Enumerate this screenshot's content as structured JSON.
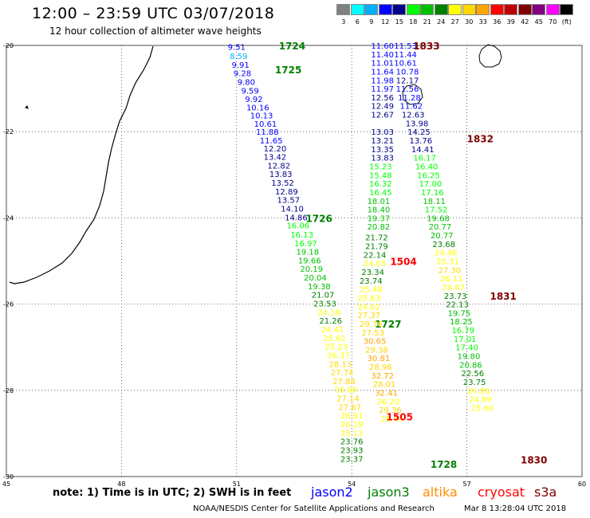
{
  "header": {
    "title": "12:00 – 23:59 UTC 03/07/2018",
    "subtitle": "12 hour collection of altimeter wave heights"
  },
  "color_scale": {
    "colors": [
      "#808080",
      "#00ffff",
      "#00b0ff",
      "#0000ff",
      "#00008b",
      "#00ff00",
      "#00c000",
      "#008000",
      "#ffff00",
      "#ffd700",
      "#ffa500",
      "#ff0000",
      "#c00000",
      "#800000",
      "#800080",
      "#ff00ff",
      "#000000"
    ],
    "labels": [
      "3",
      "6",
      "9",
      "12",
      "15",
      "18",
      "21",
      "24",
      "27",
      "30",
      "33",
      "36",
      "39",
      "42",
      "45",
      "70",
      "(ft)"
    ]
  },
  "map": {
    "lat_labels": [
      "-20",
      "-22",
      "-24",
      "-26",
      "-28",
      "-30"
    ],
    "lon_labels": [
      "45",
      "48",
      "51",
      "54",
      "57",
      "60"
    ],
    "lon_range": [
      45,
      60
    ],
    "lat_range": [
      -20,
      -30
    ]
  },
  "chart_data": {
    "type": "scatter",
    "xlabel": "",
    "ylabel": "",
    "grid": true,
    "tracks": [
      {
        "name": "jason2",
        "color": "#0000ff",
        "time_labels": [],
        "points": []
      },
      {
        "name": "jason3",
        "color": "#008000",
        "time_labels": [
          {
            "label": "1724",
            "lon": 52.1,
            "lat": -20.0
          },
          {
            "label": "1725",
            "lon": 52.0,
            "lat": -20.55
          },
          {
            "label": "1726",
            "lon": 52.8,
            "lat": -24.0
          },
          {
            "label": "1727",
            "lon": 54.6,
            "lat": -26.45
          },
          {
            "label": "1728",
            "lon": 56.05,
            "lat": -29.7
          }
        ],
        "points": [
          {
            "lon": 51.0,
            "lat": -20.03,
            "v": "9.51"
          },
          {
            "lon": 51.05,
            "lat": -20.24,
            "v": "8.59"
          },
          {
            "lon": 51.1,
            "lat": -20.44,
            "v": "9.91"
          },
          {
            "lon": 51.15,
            "lat": -20.64,
            "v": "9.28"
          },
          {
            "lon": 51.25,
            "lat": -20.84,
            "v": "9.80"
          },
          {
            "lon": 51.35,
            "lat": -21.04,
            "v": "9.59"
          },
          {
            "lon": 51.45,
            "lat": -21.24,
            "v": "9.92"
          },
          {
            "lon": 51.55,
            "lat": -21.43,
            "v": "10.16"
          },
          {
            "lon": 51.65,
            "lat": -21.62,
            "v": "10.13"
          },
          {
            "lon": 51.75,
            "lat": -21.81,
            "v": "10.61"
          },
          {
            "lon": 51.8,
            "lat": -22.0,
            "v": "11.88"
          },
          {
            "lon": 51.9,
            "lat": -22.2,
            "v": "11.65"
          },
          {
            "lon": 52.0,
            "lat": -22.38,
            "v": "12.20"
          },
          {
            "lon": 52.0,
            "lat": -22.58,
            "v": "13.42"
          },
          {
            "lon": 52.1,
            "lat": -22.78,
            "v": "12.82"
          },
          {
            "lon": 52.15,
            "lat": -22.98,
            "v": "13.83"
          },
          {
            "lon": 52.2,
            "lat": -23.18,
            "v": "13.52"
          },
          {
            "lon": 52.3,
            "lat": -23.38,
            "v": "12.89"
          },
          {
            "lon": 52.35,
            "lat": -23.58,
            "v": "13.57"
          },
          {
            "lon": 52.45,
            "lat": -23.78,
            "v": "14.10"
          },
          {
            "lon": 52.55,
            "lat": -23.98,
            "v": "14.86"
          },
          {
            "lon": 52.6,
            "lat": -24.17,
            "v": "16.06"
          },
          {
            "lon": 52.7,
            "lat": -24.38,
            "v": "16.13"
          },
          {
            "lon": 52.8,
            "lat": -24.58,
            "v": "16.97"
          },
          {
            "lon": 52.85,
            "lat": -24.78,
            "v": "19.18"
          },
          {
            "lon": 52.9,
            "lat": -24.98,
            "v": "19.66"
          },
          {
            "lon": 52.95,
            "lat": -25.18,
            "v": "20.19"
          },
          {
            "lon": 53.05,
            "lat": -25.38,
            "v": "20.04"
          },
          {
            "lon": 53.15,
            "lat": -25.58,
            "v": "19.38"
          },
          {
            "lon": 53.25,
            "lat": -25.78,
            "v": "21.07"
          },
          {
            "lon": 53.3,
            "lat": -25.98,
            "v": "23.53"
          },
          {
            "lon": 53.4,
            "lat": -26.18,
            "v": "24.18"
          },
          {
            "lon": 53.45,
            "lat": -26.38,
            "v": "21.26"
          },
          {
            "lon": 53.5,
            "lat": -26.58,
            "v": "24.41"
          },
          {
            "lon": 53.55,
            "lat": -26.78,
            "v": "25.62"
          },
          {
            "lon": 53.6,
            "lat": -26.98,
            "v": "25.23"
          },
          {
            "lon": 53.65,
            "lat": -27.18,
            "v": "26.37"
          },
          {
            "lon": 53.7,
            "lat": -27.38,
            "v": "28.13"
          },
          {
            "lon": 53.75,
            "lat": -27.58,
            "v": "27.74"
          },
          {
            "lon": 53.8,
            "lat": -27.78,
            "v": "27.88"
          },
          {
            "lon": 53.85,
            "lat": -27.98,
            "v": "26.68"
          },
          {
            "lon": 53.9,
            "lat": -28.18,
            "v": "27.14"
          },
          {
            "lon": 53.95,
            "lat": -28.38,
            "v": "27.67"
          },
          {
            "lon": 54.0,
            "lat": -28.58,
            "v": "26.81"
          },
          {
            "lon": 54.0,
            "lat": -28.78,
            "v": "26.19"
          },
          {
            "lon": 54.0,
            "lat": -28.98,
            "v": "25.13"
          },
          {
            "lon": 54.0,
            "lat": -29.18,
            "v": "23.76"
          },
          {
            "lon": 54.0,
            "lat": -29.38,
            "v": "23.93"
          },
          {
            "lon": 54.0,
            "lat": -29.58,
            "v": "23.37"
          }
        ]
      },
      {
        "name": "altika",
        "color": "#ff8c00",
        "time_labels": [],
        "points": []
      },
      {
        "name": "cryosat",
        "color": "#ff0000",
        "time_labels": [
          {
            "label": "1504",
            "lon": 55.0,
            "lat": -25.0
          },
          {
            "label": "1505",
            "lon": 54.9,
            "lat": -28.6
          }
        ],
        "points": [
          {
            "lon": 54.8,
            "lat": -22.0,
            "v": "13.03"
          },
          {
            "lon": 54.8,
            "lat": -22.2,
            "v": "13.21"
          },
          {
            "lon": 54.8,
            "lat": -22.4,
            "v": "13.35"
          },
          {
            "lon": 54.8,
            "lat": -22.6,
            "v": "13.83"
          },
          {
            "lon": 54.75,
            "lat": -22.8,
            "v": "15.23"
          },
          {
            "lon": 54.75,
            "lat": -23.0,
            "v": "15.48"
          },
          {
            "lon": 54.75,
            "lat": -23.2,
            "v": "16.32"
          },
          {
            "lon": 54.75,
            "lat": -23.4,
            "v": "16.45"
          },
          {
            "lon": 54.7,
            "lat": -23.6,
            "v": "18.01"
          },
          {
            "lon": 54.7,
            "lat": -23.8,
            "v": "18.40"
          },
          {
            "lon": 54.7,
            "lat": -24.0,
            "v": "19.37"
          },
          {
            "lon": 54.7,
            "lat": -24.2,
            "v": "20.82"
          },
          {
            "lon": 54.65,
            "lat": -24.45,
            "v": "21.72"
          },
          {
            "lon": 54.65,
            "lat": -24.65,
            "v": "21.79"
          },
          {
            "lon": 54.6,
            "lat": -24.85,
            "v": "22.14"
          },
          {
            "lon": 54.6,
            "lat": -25.05,
            "v": "24.05"
          },
          {
            "lon": 54.55,
            "lat": -25.25,
            "v": "23.34"
          },
          {
            "lon": 54.5,
            "lat": -25.45,
            "v": "23.74"
          },
          {
            "lon": 54.5,
            "lat": -25.65,
            "v": "25.48"
          },
          {
            "lon": 54.45,
            "lat": -25.85,
            "v": "25.63"
          },
          {
            "lon": 54.45,
            "lat": -26.05,
            "v": "24.62"
          },
          {
            "lon": 54.45,
            "lat": -26.25,
            "v": "27.37"
          },
          {
            "lon": 54.5,
            "lat": -26.45,
            "v": "29.76"
          },
          {
            "lon": 54.55,
            "lat": -26.65,
            "v": "27.53"
          },
          {
            "lon": 54.6,
            "lat": -26.85,
            "v": "30.65"
          },
          {
            "lon": 54.65,
            "lat": -27.05,
            "v": "29.38"
          },
          {
            "lon": 54.7,
            "lat": -27.25,
            "v": "30.81"
          },
          {
            "lon": 54.75,
            "lat": -27.45,
            "v": "28.96"
          },
          {
            "lon": 54.8,
            "lat": -27.65,
            "v": "32.72"
          },
          {
            "lon": 54.85,
            "lat": -27.85,
            "v": "28.01"
          },
          {
            "lon": 54.9,
            "lat": -28.05,
            "v": "32.41"
          },
          {
            "lon": 54.95,
            "lat": -28.25,
            "v": "26.20"
          },
          {
            "lon": 55.0,
            "lat": -28.45,
            "v": "29.36"
          },
          {
            "lon": 55.05,
            "lat": -28.65,
            "v": "26.44"
          }
        ]
      },
      {
        "name": "s3a",
        "color": "#800000",
        "time_labels": [
          {
            "label": "1833",
            "lon": 55.6,
            "lat": -20.0
          },
          {
            "label": "1832",
            "lon": 57.0,
            "lat": -22.15
          },
          {
            "label": "1831",
            "lon": 57.6,
            "lat": -25.8
          },
          {
            "label": "1830",
            "lon": 58.4,
            "lat": -29.6
          }
        ],
        "points": [
          {
            "lon": 54.8,
            "lat": -20.0,
            "v": "11.60"
          },
          {
            "lon": 54.8,
            "lat": -20.2,
            "v": "11.40"
          },
          {
            "lon": 54.8,
            "lat": -20.4,
            "v": "11.01"
          },
          {
            "lon": 54.8,
            "lat": -20.6,
            "v": "11.64"
          },
          {
            "lon": 54.8,
            "lat": -20.8,
            "v": "11.98"
          },
          {
            "lon": 54.8,
            "lat": -21.0,
            "v": "11.97"
          },
          {
            "lon": 54.8,
            "lat": -21.2,
            "v": "12.56"
          },
          {
            "lon": 54.8,
            "lat": -21.4,
            "v": "12.49"
          },
          {
            "lon": 54.8,
            "lat": -21.6,
            "v": "12.67"
          },
          {
            "lon": 55.4,
            "lat": -20.0,
            "v": "11.53"
          },
          {
            "lon": 55.4,
            "lat": -20.2,
            "v": "11.44"
          },
          {
            "lon": 55.4,
            "lat": -20.4,
            "v": "10.61"
          },
          {
            "lon": 55.45,
            "lat": -20.6,
            "v": "10.78"
          },
          {
            "lon": 55.45,
            "lat": -20.8,
            "v": "12.17"
          },
          {
            "lon": 55.45,
            "lat": -21.0,
            "v": "11.56"
          },
          {
            "lon": 55.5,
            "lat": -21.2,
            "v": "11.28"
          },
          {
            "lon": 55.55,
            "lat": -21.4,
            "v": "11.62"
          },
          {
            "lon": 55.6,
            "lat": -21.6,
            "v": "12.63"
          },
          {
            "lon": 55.7,
            "lat": -21.8,
            "v": "13.98"
          },
          {
            "lon": 55.75,
            "lat": -22.0,
            "v": "14.25"
          },
          {
            "lon": 55.8,
            "lat": -22.2,
            "v": "13.76"
          },
          {
            "lon": 55.85,
            "lat": -22.4,
            "v": "14.41"
          },
          {
            "lon": 55.9,
            "lat": -22.6,
            "v": "16.17"
          },
          {
            "lon": 55.95,
            "lat": -22.8,
            "v": "16.40"
          },
          {
            "lon": 56.0,
            "lat": -23.0,
            "v": "16.25"
          },
          {
            "lon": 56.05,
            "lat": -23.2,
            "v": "17.00"
          },
          {
            "lon": 56.1,
            "lat": -23.4,
            "v": "17.16"
          },
          {
            "lon": 56.15,
            "lat": -23.6,
            "v": "18.11"
          },
          {
            "lon": 56.2,
            "lat": -23.8,
            "v": "17.52"
          },
          {
            "lon": 56.25,
            "lat": -24.0,
            "v": "19.68"
          },
          {
            "lon": 56.3,
            "lat": -24.2,
            "v": "20.77"
          },
          {
            "lon": 56.35,
            "lat": -24.4,
            "v": "20.77"
          },
          {
            "lon": 56.4,
            "lat": -24.6,
            "v": "23.68"
          },
          {
            "lon": 56.45,
            "lat": -24.8,
            "v": "24.46"
          },
          {
            "lon": 56.5,
            "lat": -25.0,
            "v": "25.31"
          },
          {
            "lon": 56.55,
            "lat": -25.2,
            "v": "27.30"
          },
          {
            "lon": 56.6,
            "lat": -25.4,
            "v": "26.11"
          },
          {
            "lon": 56.65,
            "lat": -25.6,
            "v": "24.67"
          },
          {
            "lon": 56.7,
            "lat": -25.8,
            "v": "23.73"
          },
          {
            "lon": 56.75,
            "lat": -26.0,
            "v": "22.13"
          },
          {
            "lon": 56.8,
            "lat": -26.2,
            "v": "19.75"
          },
          {
            "lon": 56.85,
            "lat": -26.4,
            "v": "18.25"
          },
          {
            "lon": 56.9,
            "lat": -26.6,
            "v": "16.79"
          },
          {
            "lon": 56.95,
            "lat": -26.8,
            "v": "17.01"
          },
          {
            "lon": 57.0,
            "lat": -27.0,
            "v": "17.40"
          },
          {
            "lon": 57.05,
            "lat": -27.2,
            "v": "19.80"
          },
          {
            "lon": 57.1,
            "lat": -27.4,
            "v": "20.86"
          },
          {
            "lon": 57.15,
            "lat": -27.6,
            "v": "22.56"
          },
          {
            "lon": 57.2,
            "lat": -27.8,
            "v": "23.75"
          },
          {
            "lon": 57.3,
            "lat": -28.0,
            "v": "24.98"
          },
          {
            "lon": 57.35,
            "lat": -28.2,
            "v": "24.89"
          },
          {
            "lon": 57.4,
            "lat": -28.4,
            "v": "25.60"
          }
        ]
      }
    ]
  },
  "footer": {
    "note": "note: 1) Time is in UTC; 2) SWH is in feet",
    "legend": [
      {
        "label": "jason2",
        "color": "#0000ff"
      },
      {
        "label": "jason3",
        "color": "#008000"
      },
      {
        "label": "altika",
        "color": "#ff8c00"
      },
      {
        "label": "cryosat",
        "color": "#ff0000"
      },
      {
        "label": "s3a",
        "color": "#800000"
      }
    ],
    "credit": "NOAA/NESDIS Center for Satellite Applications and Research",
    "timestamp": "Mar  8 13:28:04 UTC 2018"
  }
}
